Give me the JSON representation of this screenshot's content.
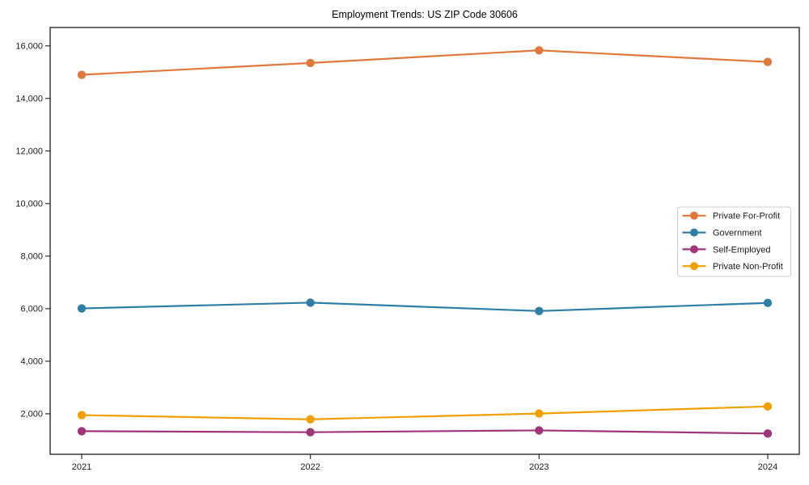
{
  "chart_data": {
    "type": "line",
    "title": "Employment Trends: US ZIP Code 30606",
    "xlabel": "",
    "ylabel": "",
    "categories": [
      "2021",
      "2022",
      "2023",
      "2024"
    ],
    "series": [
      {
        "name": "Private For-Profit",
        "color": "#e2793c",
        "values": [
          14900,
          15350,
          15830,
          15390
        ]
      },
      {
        "name": "Government",
        "color": "#2e7fa6",
        "values": [
          6010,
          6230,
          5910,
          6220
        ]
      },
      {
        "name": "Self-Employed",
        "color": "#a0357c",
        "values": [
          1340,
          1300,
          1370,
          1250
        ]
      },
      {
        "name": "Private Non-Profit",
        "color": "#f2a001",
        "values": [
          1950,
          1790,
          2010,
          2280
        ]
      }
    ],
    "y_ticks": [
      2000,
      4000,
      6000,
      8000,
      10000,
      12000,
      14000,
      16000
    ],
    "y_tick_labels": [
      "2,000",
      "4,000",
      "6,000",
      "8,000",
      "10,000",
      "12,000",
      "14,000",
      "16,000"
    ],
    "ylim": [
      460,
      16700
    ],
    "grid": false,
    "legend_position": "center-right",
    "marker": "circle",
    "spine_color": "#1a1a1a",
    "legend_border_color": "#cccccc",
    "background_color": "#ffffff"
  }
}
